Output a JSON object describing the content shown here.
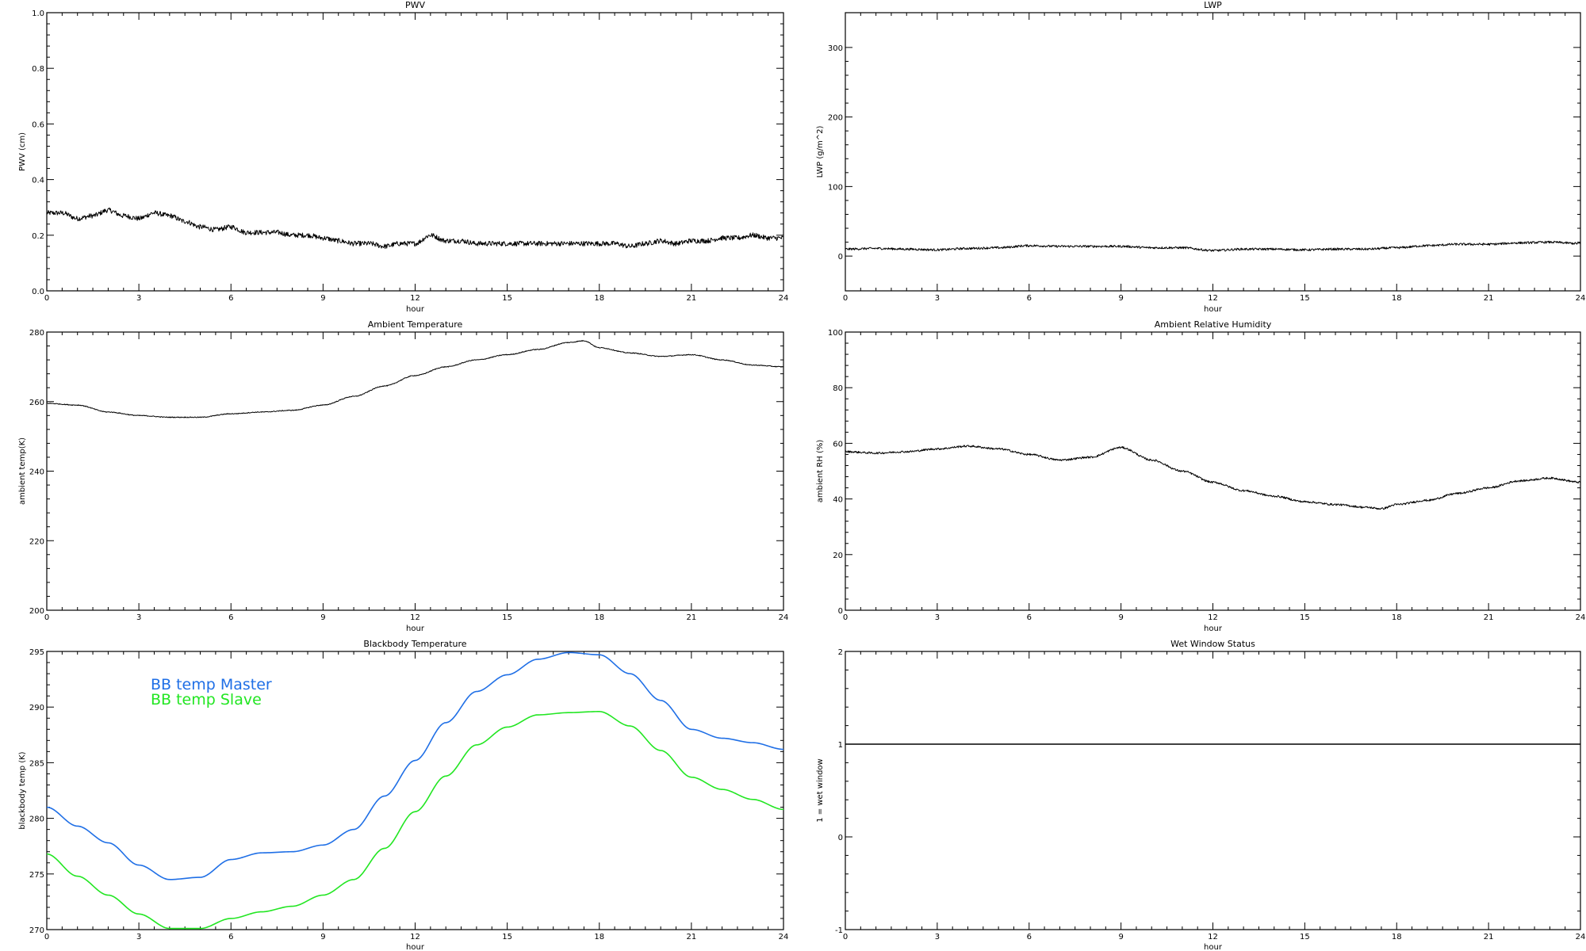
{
  "colors": {
    "background": "#ffffff",
    "axes": "#000000",
    "master": "#1f6fe6",
    "slave": "#22e622",
    "line": "#000000"
  },
  "chart_data": [
    {
      "id": "pwv",
      "type": "line",
      "title": "PWV",
      "xlabel": "hour",
      "ylabel": "PWV (cm)",
      "xlim": [
        0,
        24
      ],
      "ylim": [
        0,
        1.0
      ],
      "xticks": [
        "0",
        "3",
        "6",
        "9",
        "12",
        "15",
        "18",
        "21",
        "24"
      ],
      "yticks": [
        "0.0",
        "0.2",
        "0.4",
        "0.6",
        "0.8",
        "1.0"
      ],
      "noise": 0.009,
      "grid": false,
      "series": [
        {
          "color": "#000000",
          "x": [
            0,
            0.5,
            1,
            1.5,
            2,
            2.5,
            3,
            3.5,
            4,
            4.5,
            5,
            5.5,
            6,
            6.5,
            7,
            7.5,
            8,
            8.5,
            9,
            9.5,
            10,
            10.5,
            11,
            11.5,
            12,
            12.5,
            13,
            13.5,
            14,
            14.5,
            15,
            15.5,
            16,
            16.5,
            17,
            17.5,
            18,
            18.5,
            19,
            19.5,
            20,
            20.5,
            21,
            21.5,
            22,
            22.5,
            23,
            23.5,
            24
          ],
          "y": [
            0.28,
            0.28,
            0.26,
            0.27,
            0.29,
            0.27,
            0.26,
            0.28,
            0.27,
            0.25,
            0.23,
            0.22,
            0.23,
            0.21,
            0.21,
            0.21,
            0.2,
            0.2,
            0.19,
            0.18,
            0.17,
            0.17,
            0.16,
            0.17,
            0.17,
            0.2,
            0.18,
            0.18,
            0.17,
            0.17,
            0.17,
            0.17,
            0.17,
            0.17,
            0.17,
            0.17,
            0.17,
            0.17,
            0.16,
            0.17,
            0.18,
            0.17,
            0.18,
            0.18,
            0.19,
            0.19,
            0.2,
            0.19,
            0.19
          ]
        }
      ]
    },
    {
      "id": "lwp",
      "type": "line",
      "title": "LWP",
      "xlabel": "hour",
      "ylabel": "LWP (g/m^2)",
      "xlim": [
        0,
        24
      ],
      "ylim": [
        -50,
        350
      ],
      "xticks": [
        "0",
        "3",
        "6",
        "9",
        "12",
        "15",
        "18",
        "21",
        "24"
      ],
      "yticks": [
        "0",
        "100",
        "200",
        "300"
      ],
      "ytickvals": [
        0,
        100,
        200,
        300
      ],
      "noise": 1.6,
      "grid": false,
      "series": [
        {
          "color": "#000000",
          "x": [
            0,
            1,
            2,
            3,
            4,
            5,
            6,
            7,
            8,
            9,
            10,
            11,
            12,
            13,
            14,
            15,
            16,
            17,
            18,
            19,
            20,
            21,
            22,
            23,
            24
          ],
          "y": [
            10,
            11,
            10,
            9,
            11,
            12,
            15,
            14,
            14,
            14,
            12,
            12,
            8,
            10,
            10,
            9,
            10,
            10,
            12,
            15,
            17,
            17,
            19,
            20,
            18
          ]
        }
      ]
    },
    {
      "id": "temp",
      "type": "line",
      "title": "Ambient Temperature",
      "xlabel": "hour",
      "ylabel": "ambient temp(K)",
      "xlim": [
        0,
        24
      ],
      "ylim": [
        200,
        280
      ],
      "xticks": [
        "0",
        "3",
        "6",
        "9",
        "12",
        "15",
        "18",
        "21",
        "24"
      ],
      "yticks": [
        "200",
        "220",
        "240",
        "260",
        "280"
      ],
      "noise": 0.12,
      "grid": false,
      "series": [
        {
          "color": "#000000",
          "x": [
            0,
            1,
            2,
            3,
            4,
            5,
            6,
            7,
            8,
            9,
            10,
            11,
            12,
            13,
            14,
            15,
            16,
            17,
            17.5,
            18,
            19,
            20,
            21,
            22,
            23,
            24
          ],
          "y": [
            259.5,
            259,
            257,
            256,
            255.5,
            255.5,
            256.5,
            257,
            257.5,
            259,
            261.5,
            264.5,
            267.5,
            270,
            272,
            273.5,
            275,
            277,
            277.5,
            275.5,
            274,
            273,
            273.5,
            272,
            270.5,
            270
          ]
        }
      ]
    },
    {
      "id": "rh",
      "type": "line",
      "title": "Ambient Relative Humidity",
      "xlabel": "hour",
      "ylabel": "ambient RH (%)",
      "xlim": [
        0,
        24
      ],
      "ylim": [
        0,
        100
      ],
      "xticks": [
        "0",
        "3",
        "6",
        "9",
        "12",
        "15",
        "18",
        "21",
        "24"
      ],
      "yticks": [
        "0",
        "20",
        "40",
        "60",
        "80",
        "100"
      ],
      "noise": 0.35,
      "grid": false,
      "series": [
        {
          "color": "#000000",
          "x": [
            0,
            1,
            2,
            3,
            4,
            5,
            6,
            7,
            8,
            9,
            10,
            11,
            12,
            13,
            14,
            15,
            16,
            17,
            17.5,
            18,
            19,
            20,
            21,
            22,
            23,
            24
          ],
          "y": [
            57,
            56.5,
            57,
            58,
            59,
            58,
            56,
            54,
            55,
            58.5,
            54,
            50,
            46,
            43,
            41,
            39,
            38,
            37,
            36.5,
            38,
            39.5,
            42,
            44,
            46.5,
            47.5,
            46
          ]
        }
      ]
    },
    {
      "id": "bb",
      "type": "line",
      "title": "Blackbody Temperature",
      "xlabel": "hour",
      "ylabel": "blackbody temp (K)",
      "xlim": [
        0,
        24
      ],
      "ylim": [
        270,
        295
      ],
      "xticks": [
        "0",
        "3",
        "6",
        "9",
        "12",
        "15",
        "18",
        "21",
        "24"
      ],
      "yticks": [
        "270",
        "275",
        "280",
        "285",
        "290",
        "295"
      ],
      "noise": 0,
      "grid": false,
      "legend": "upper-left",
      "series": [
        {
          "name": "BB temp Master",
          "color": "#1f6fe6",
          "x": [
            0,
            1,
            2,
            3,
            4,
            5,
            6,
            7,
            8,
            9,
            10,
            11,
            12,
            13,
            14,
            15,
            16,
            17,
            18,
            19,
            20,
            21,
            22,
            23,
            24
          ],
          "y": [
            281,
            279.3,
            277.8,
            275.8,
            274.5,
            274.7,
            276.3,
            276.9,
            277,
            277.6,
            279,
            282,
            285.2,
            288.6,
            291.4,
            292.9,
            294.3,
            294.9,
            294.7,
            293,
            290.6,
            288,
            287.2,
            286.8,
            286.2
          ]
        },
        {
          "name": "BB temp Slave",
          "color": "#22e622",
          "x": [
            0,
            1,
            2,
            3,
            4,
            5,
            6,
            7,
            8,
            9,
            10,
            11,
            12,
            13,
            14,
            15,
            16,
            17,
            18,
            19,
            20,
            21,
            22,
            23,
            24
          ],
          "y": [
            276.8,
            274.8,
            273.1,
            271.4,
            270.1,
            270.1,
            271,
            271.6,
            272.1,
            273.1,
            274.5,
            277.3,
            280.6,
            283.8,
            286.6,
            288.2,
            289.3,
            289.5,
            289.6,
            288.3,
            286.1,
            283.7,
            282.6,
            281.7,
            280.8
          ]
        }
      ]
    },
    {
      "id": "wet",
      "type": "line",
      "title": "Wet Window Status",
      "xlabel": "hour",
      "ylabel": "1 = wet window",
      "xlim": [
        0,
        24
      ],
      "ylim": [
        -1,
        2
      ],
      "xticks": [
        "0",
        "3",
        "6",
        "9",
        "12",
        "15",
        "18",
        "21",
        "24"
      ],
      "yticks": [
        "-1",
        "0",
        "1",
        "2"
      ],
      "noise": 0,
      "grid": false,
      "series": [
        {
          "color": "#000000",
          "x": [
            0,
            24
          ],
          "y": [
            1,
            1
          ]
        }
      ]
    }
  ]
}
